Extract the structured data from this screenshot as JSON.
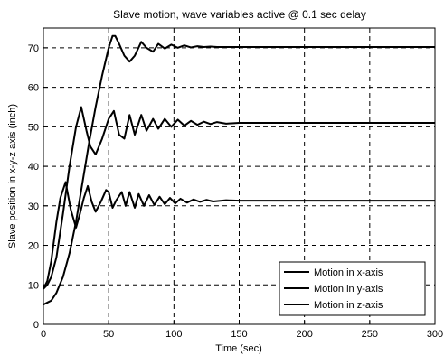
{
  "chart_data": {
    "type": "line",
    "title": "Slave motion, wave variables active @ 0.1 sec delay",
    "xlabel": "Time (sec)",
    "ylabel": "Slave position in x-y-z axis (inch)",
    "xlim": [
      0,
      300
    ],
    "ylim": [
      0,
      75
    ],
    "xticks": [
      "0",
      "50",
      "100",
      "150",
      "200",
      "250",
      "300"
    ],
    "yticks": [
      "0",
      "10",
      "20",
      "30",
      "40",
      "50",
      "60",
      "70"
    ],
    "grid": true,
    "grid_style": "dashed",
    "legend_position": "bottom-right",
    "line_color": "#000000",
    "series": [
      {
        "name": "Motion in x-axis",
        "x": [
          0,
          3,
          6,
          10,
          15,
          20,
          25,
          30,
          35,
          40,
          45,
          50,
          53,
          55,
          58,
          62,
          66,
          70,
          75,
          79,
          84,
          88,
          93,
          98,
          103,
          108,
          113,
          118,
          123,
          128,
          133,
          140,
          150,
          160,
          180,
          200,
          230,
          260,
          300
        ],
        "y": [
          5,
          5.5,
          6,
          8,
          12,
          18,
          26,
          36,
          46,
          55,
          63,
          70,
          73,
          73,
          71,
          68,
          66.5,
          68,
          71.5,
          70,
          69,
          71,
          69.8,
          70.8,
          70,
          70.6,
          70.1,
          70.4,
          70.2,
          70.3,
          70.2,
          70.2,
          70.2,
          70.2,
          70.2,
          70.2,
          70.2,
          70.2,
          70.2
        ]
      },
      {
        "name": "Motion in y-axis",
        "x": [
          0,
          3,
          6,
          10,
          15,
          20,
          25,
          29,
          33,
          36,
          40,
          45,
          50,
          54,
          58,
          62,
          66,
          70,
          75,
          79,
          84,
          88,
          93,
          98,
          103,
          108,
          113,
          118,
          123,
          128,
          133,
          140,
          150,
          160,
          180,
          200,
          230,
          260,
          300
        ],
        "y": [
          9,
          10,
          12,
          17,
          28,
          40,
          50,
          55,
          49,
          45,
          43,
          47,
          52,
          54,
          48,
          47,
          53,
          48,
          53,
          49,
          52,
          49.5,
          52,
          50,
          51.8,
          50.3,
          51.5,
          50.5,
          51.3,
          50.7,
          51.2,
          50.8,
          51,
          51,
          51,
          51,
          51,
          51,
          51
        ]
      },
      {
        "name": "Motion in z-axis",
        "x": [
          0,
          3,
          6,
          10,
          13,
          17,
          21,
          25,
          28,
          31,
          34,
          37,
          40,
          44,
          48,
          50,
          53,
          56,
          60,
          63,
          66,
          70,
          73,
          77,
          81,
          85,
          89,
          93,
          97,
          101,
          105,
          110,
          115,
          120,
          125,
          130,
          140,
          150,
          170,
          200,
          230,
          260,
          300
        ],
        "y": [
          9,
          11,
          16,
          26,
          32,
          36,
          29,
          24.5,
          28,
          32,
          35,
          31,
          28.5,
          31,
          34,
          33.5,
          29.5,
          31.5,
          33.5,
          30,
          33.5,
          29.5,
          33,
          30,
          32.7,
          30.2,
          32.3,
          30.4,
          32,
          30.6,
          31.8,
          30.8,
          31.6,
          31,
          31.5,
          31.1,
          31.4,
          31.3,
          31.3,
          31.3,
          31.3,
          31.3,
          31.3
        ]
      }
    ]
  }
}
